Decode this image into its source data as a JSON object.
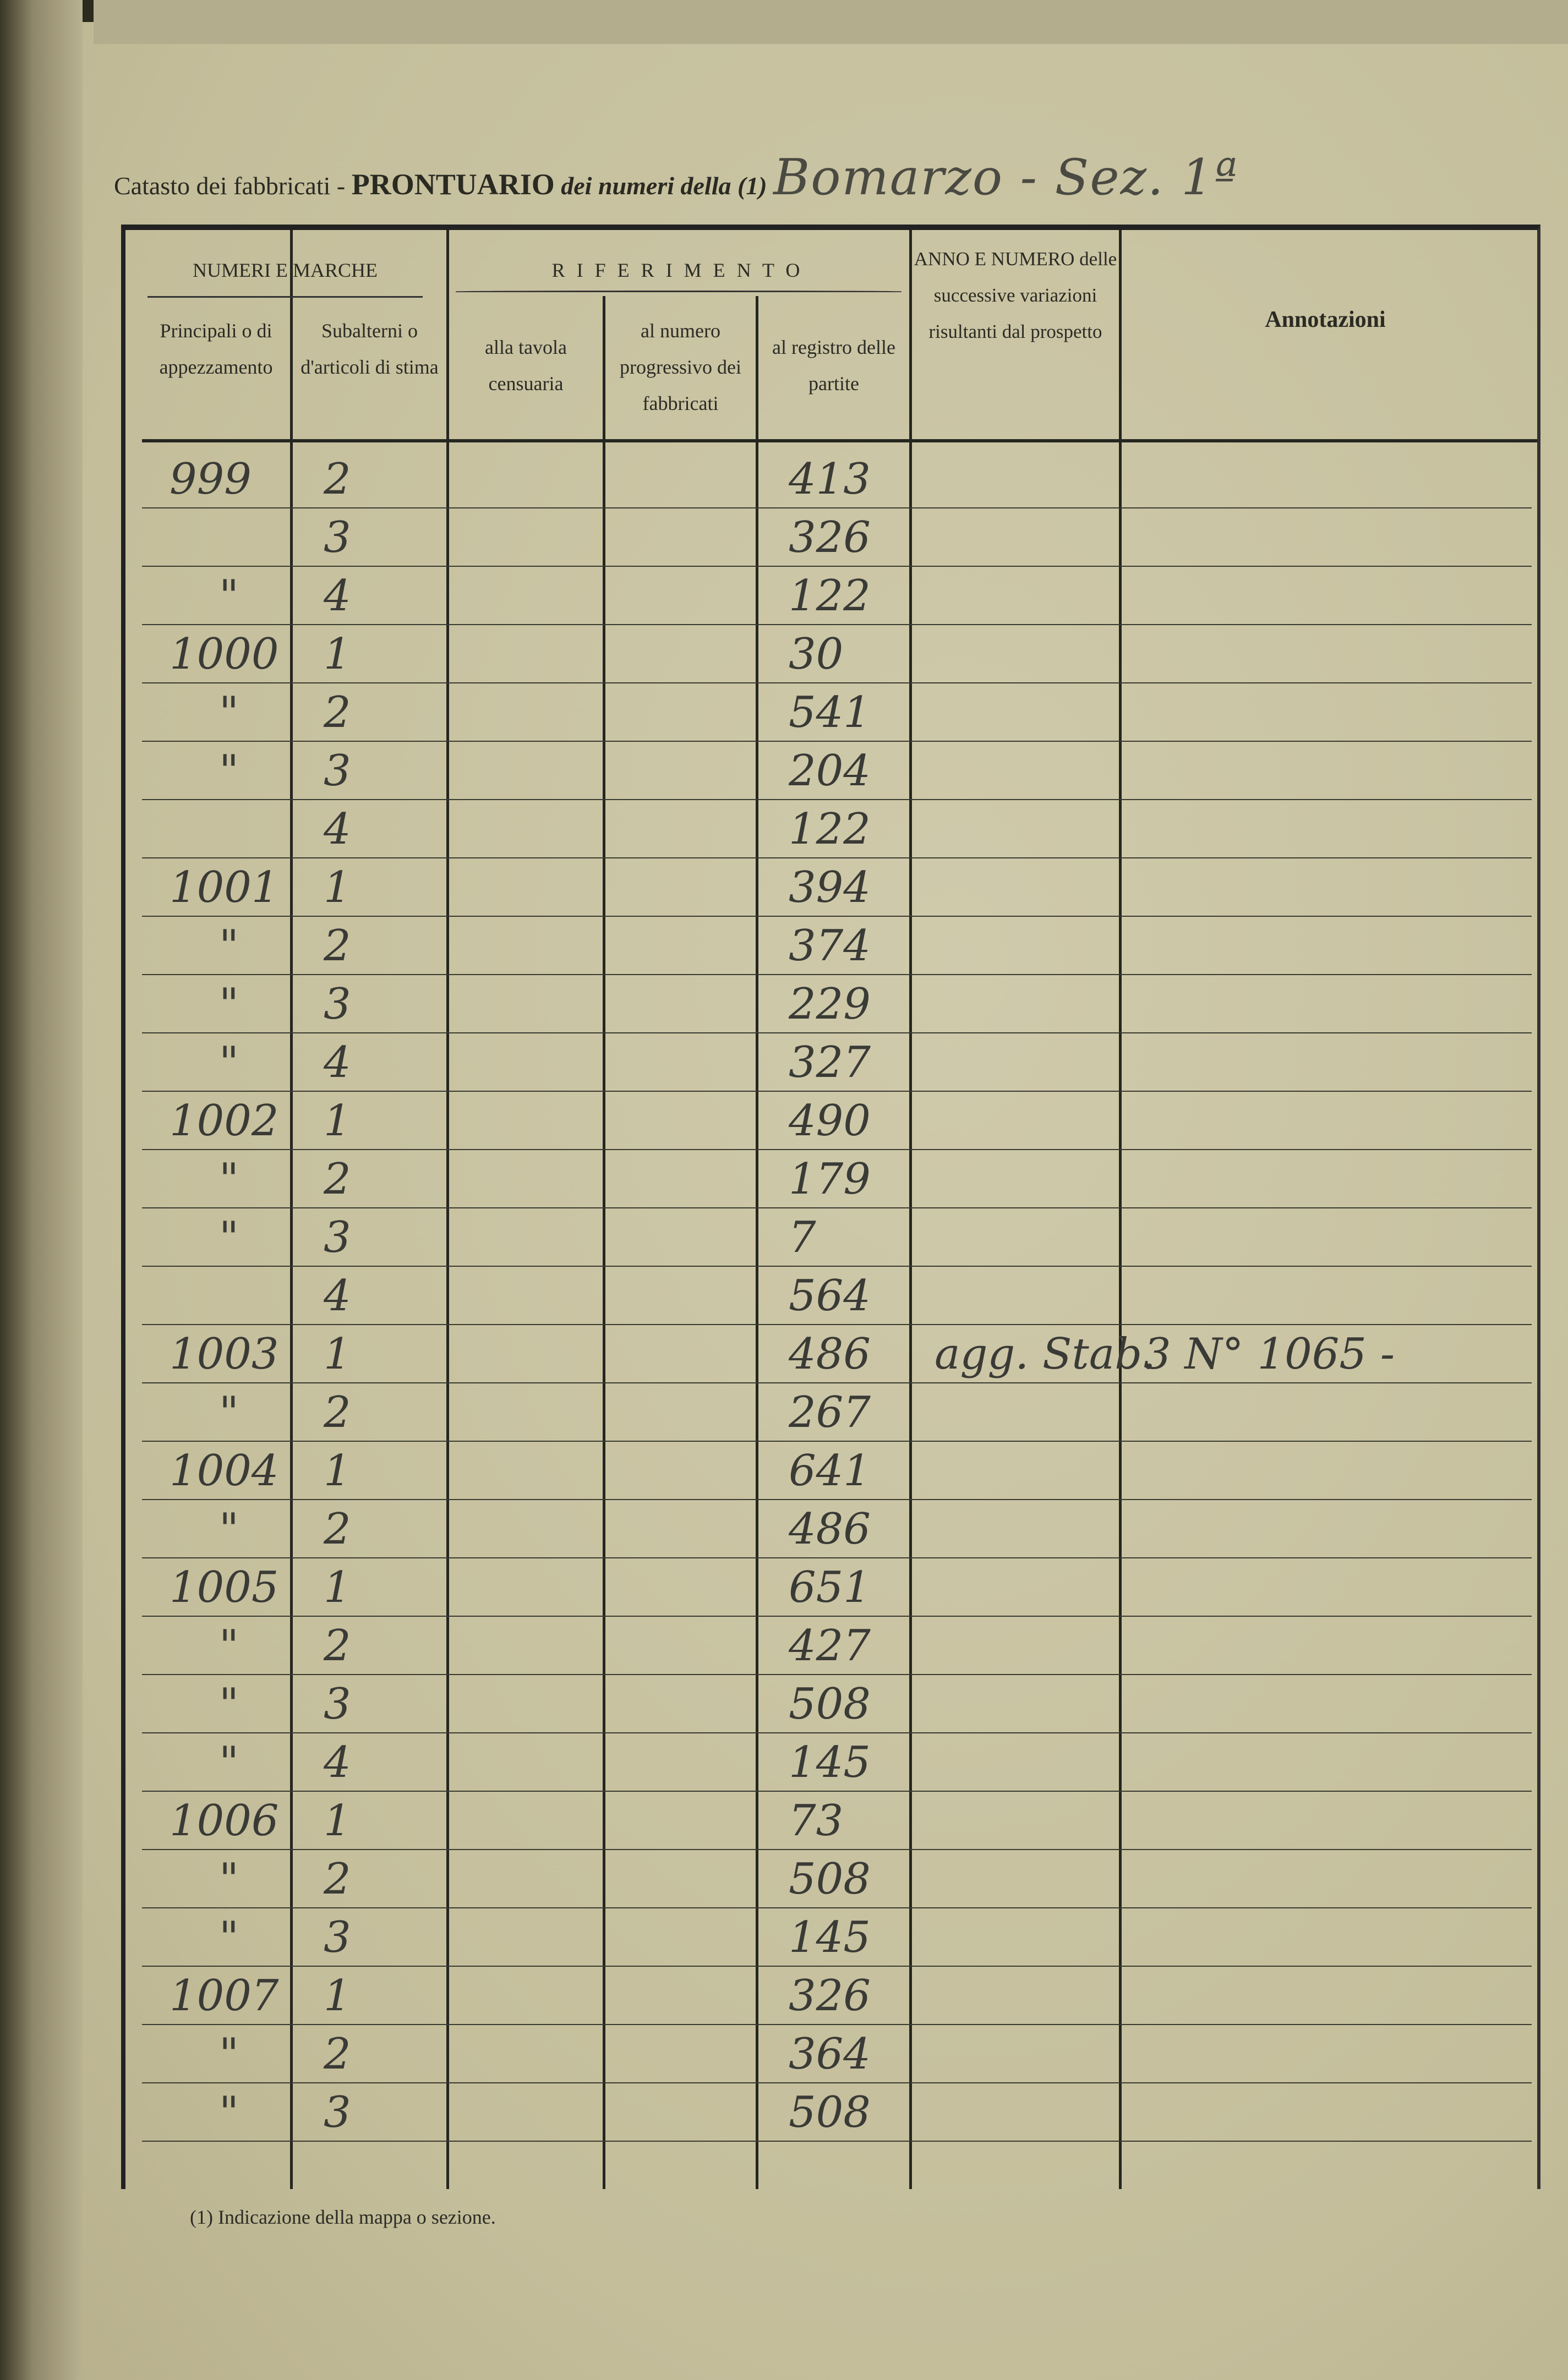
{
  "header": {
    "title_prefix": "Catasto dei fabbricati -",
    "title_main": "PRONTUARIO",
    "title_suffix": "dei numeri della (1)",
    "title_handwritten": "Bomarzo - Sez. 1ª"
  },
  "columns": {
    "group_numeri": "NUMERI E MARCHE",
    "principali": "Principali o di appezzamento",
    "subalterni": "Subalterni o d'articoli di stima",
    "group_riferimento": "R I F E R I M E N T O",
    "tavola": "alla tavola censuaria",
    "progressivo": "al numero progressivo dei fabbricati",
    "registro": "al registro delle partite",
    "variazioni": "ANNO E NUMERO delle successive variazioni risultanti dal prospetto",
    "annotazioni": "Annotazioni"
  },
  "rows": [
    {
      "principale": "999",
      "subalterno": "2",
      "partita": "413"
    },
    {
      "principale": "",
      "subalterno": "3",
      "partita": "326"
    },
    {
      "principale": "\"",
      "subalterno": "4",
      "partita": "122"
    },
    {
      "principale": "1000",
      "subalterno": "1",
      "partita": "30"
    },
    {
      "principale": "\"",
      "subalterno": "2",
      "partita": "541"
    },
    {
      "principale": "\"",
      "subalterno": "3",
      "partita": "204"
    },
    {
      "principale": "",
      "subalterno": "4",
      "partita": "122"
    },
    {
      "principale": "1001",
      "subalterno": "1",
      "partita": "394"
    },
    {
      "principale": "\"",
      "subalterno": "2",
      "partita": "374"
    },
    {
      "principale": "\"",
      "subalterno": "3",
      "partita": "229"
    },
    {
      "principale": "\"",
      "subalterno": "4",
      "partita": "327"
    },
    {
      "principale": "1002",
      "subalterno": "1",
      "partita": "490"
    },
    {
      "principale": "\"",
      "subalterno": "2",
      "partita": "179"
    },
    {
      "principale": "\"",
      "subalterno": "3",
      "partita": "7"
    },
    {
      "principale": "",
      "subalterno": "4",
      "partita": "564"
    },
    {
      "principale": "1003",
      "subalterno": "1",
      "partita": "486",
      "variazione": "agg. Stab.",
      "annotazione": "3 N° 1065 -"
    },
    {
      "principale": "\"",
      "subalterno": "2",
      "partita": "267"
    },
    {
      "principale": "1004",
      "subalterno": "1",
      "partita": "641"
    },
    {
      "principale": "\"",
      "subalterno": "2",
      "partita": "486"
    },
    {
      "principale": "1005",
      "subalterno": "1",
      "partita": "651"
    },
    {
      "principale": "\"",
      "subalterno": "2",
      "partita": "427"
    },
    {
      "principale": "\"",
      "subalterno": "3",
      "partita": "508"
    },
    {
      "principale": "\"",
      "subalterno": "4",
      "partita": "145"
    },
    {
      "principale": "1006",
      "subalterno": "1",
      "partita": "73"
    },
    {
      "principale": "\"",
      "subalterno": "2",
      "partita": "508"
    },
    {
      "principale": "\"",
      "subalterno": "3",
      "partita": "145"
    },
    {
      "principale": "1007",
      "subalterno": "1",
      "partita": "326"
    },
    {
      "principale": "\"",
      "subalterno": "2",
      "partita": "364"
    },
    {
      "principale": "\"",
      "subalterno": "3",
      "partita": "508"
    }
  ],
  "footnote": "(1) Indicazione della mappa o sezione.",
  "colors": {
    "paper": "#c8c3a2",
    "ink_print": "#2b2b24",
    "ink_hand": "#3a3a36"
  }
}
